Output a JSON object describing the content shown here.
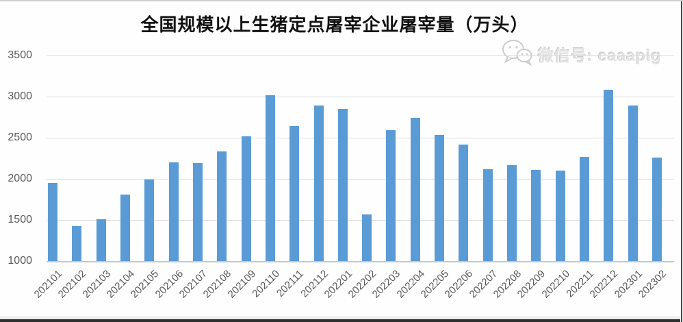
{
  "page": {
    "title": "全国规模以上生猪定点屠宰企业屠宰量（万头）"
  },
  "watermark": {
    "icon": "wechat-icon",
    "label": "微信号: caaapig",
    "color": "#e3e3e3"
  },
  "chart_data": {
    "type": "bar",
    "title": "全国规模以上生猪定点屠宰企业屠宰量（万头）",
    "categories": [
      "202101",
      "202102",
      "202103",
      "202104",
      "202105",
      "202106",
      "202107",
      "202108",
      "202109",
      "202110",
      "202111",
      "202112",
      "202201",
      "202202",
      "202203",
      "202204",
      "202205",
      "202206",
      "202207",
      "202208",
      "202209",
      "202210",
      "202211",
      "202212",
      "202301",
      "202302"
    ],
    "values": [
      1950,
      1425,
      1505,
      1805,
      1990,
      2200,
      2190,
      2335,
      2515,
      3020,
      2645,
      2895,
      2850,
      1570,
      2590,
      2740,
      2535,
      2420,
      2120,
      2170,
      2105,
      2100,
      2270,
      3085,
      2895,
      2260
    ],
    "xlabel": "",
    "ylabel": "",
    "ylim": [
      1000,
      3500
    ],
    "yticks": [
      3500,
      3000,
      2500,
      2000,
      1500,
      1000
    ],
    "grid": true,
    "legend": false,
    "bar_color": "#5B9BD5",
    "gridline_color": "#D9D9D9",
    "axis_label_color": "#595959"
  }
}
